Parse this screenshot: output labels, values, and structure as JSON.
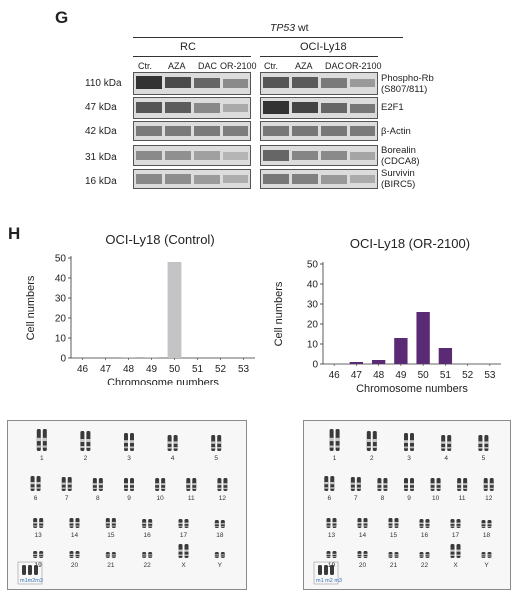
{
  "panel_g": {
    "letter": "G",
    "header": "TP53 wt",
    "header_italic": "TP53",
    "header_rest": " wt",
    "groups": [
      "RC",
      "OCI-Ly18"
    ],
    "lanes": [
      "Ctr.",
      "AZA",
      "DAC",
      "OR-2100"
    ],
    "rows": [
      {
        "kda": "110 kDa",
        "protein_line1": "Phospho-Rb",
        "protein_line2": "(S807/811)"
      },
      {
        "kda": "47 kDa",
        "protein_line1": "E2F1",
        "protein_line2": ""
      },
      {
        "kda": "42 kDa",
        "protein_line1": "β-Actin",
        "protein_line2": ""
      },
      {
        "kda": "31 kDa",
        "protein_line1": "Borealin",
        "protein_line2": "(CDCA8)"
      },
      {
        "kda": "16 kDa",
        "protein_line1": "Survivin",
        "protein_line2": "(BIRC5)"
      }
    ]
  },
  "panel_h": {
    "letter": "H"
  },
  "chart_data": [
    {
      "type": "bar",
      "title": "OCI-Ly18 (Control)",
      "xlabel": "Chromosome numbers",
      "ylabel": "Cell numbers",
      "categories": [
        "46",
        "47",
        "48",
        "49",
        "50",
        "51",
        "52",
        "53"
      ],
      "values": [
        0,
        0,
        0.5,
        0.5,
        48,
        0,
        0,
        0
      ],
      "ylim": [
        0,
        50
      ],
      "yticks": [
        "0",
        "10",
        "20",
        "30",
        "40",
        "50"
      ],
      "color": "#c4c4c6"
    },
    {
      "type": "bar",
      "title": "OCI-Ly18 (OR-2100)",
      "xlabel": "Chromosome numbers",
      "ylabel": "Cell numbers",
      "categories": [
        "46",
        "47",
        "48",
        "49",
        "50",
        "51",
        "52",
        "53"
      ],
      "values": [
        0,
        1,
        2,
        13,
        26,
        8,
        0,
        0
      ],
      "ylim": [
        0,
        50
      ],
      "yticks": [
        "0",
        "10",
        "20",
        "30",
        "40",
        "50"
      ],
      "color": "#5b2a74"
    }
  ],
  "karyotypes": [
    {
      "labels": [
        "1",
        "2",
        "3",
        "4",
        "5",
        "6",
        "7",
        "8",
        "9",
        "10",
        "11",
        "12",
        "13",
        "14",
        "15",
        "16",
        "17",
        "18",
        "19",
        "20",
        "21",
        "22",
        "X",
        "Y"
      ],
      "marker_label": "m1m2m3"
    },
    {
      "labels": [
        "1",
        "2",
        "3",
        "4",
        "5",
        "6",
        "7",
        "8",
        "9",
        "10",
        "11",
        "12",
        "13",
        "14",
        "15",
        "16",
        "17",
        "18",
        "19",
        "20",
        "21",
        "22",
        "X",
        "Y"
      ],
      "marker_label": "m1 m2 m3"
    }
  ]
}
